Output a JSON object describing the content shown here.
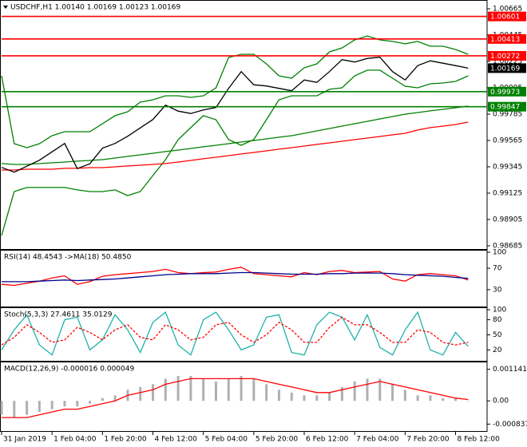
{
  "chart_data": [
    {
      "type": "line",
      "title": "USDCHF,H1 1.00140 1.00169 1.00123 1.00169",
      "x": [
        0,
        4,
        8,
        12,
        16,
        20,
        24,
        28,
        32,
        36,
        40,
        44,
        48,
        52,
        56,
        60,
        64,
        68,
        72,
        76,
        80,
        84,
        88,
        92,
        96,
        100,
        104,
        108,
        112,
        116,
        120,
        124,
        128,
        132,
        136,
        140,
        144,
        148
      ],
      "xlim": [
        0,
        154
      ],
      "xticks": [
        {
          "value": 0,
          "label": "31 Jan 2019"
        },
        {
          "value": 16,
          "label": "1 Feb 04:00"
        },
        {
          "value": 32,
          "label": "1 Feb 20:00"
        },
        {
          "value": 48,
          "label": "4 Feb 12:00"
        },
        {
          "value": 64,
          "label": "5 Feb 04:00"
        },
        {
          "value": 80,
          "label": "5 Feb 20:00"
        },
        {
          "value": 96,
          "label": "6 Feb 12:00"
        },
        {
          "value": 112,
          "label": "7 Feb 04:00"
        },
        {
          "value": 128,
          "label": "7 Feb 20:00"
        },
        {
          "value": 144,
          "label": "8 Feb 12:00"
        }
      ],
      "ylim": [
        0.98658,
        1.00725
      ],
      "yticks": [
        1.00665,
        1.00445,
        1.00225,
        1.00005,
        0.99785,
        0.99565,
        0.99345,
        0.99125,
        0.98905,
        0.98685
      ],
      "series": [
        {
          "color": "#008000",
          "values": [
            1.00105,
            0.99538,
            0.99505,
            0.99538,
            0.99605,
            0.99638,
            0.99638,
            0.99638,
            0.99705,
            0.99772,
            0.99805,
            0.99885,
            0.99905,
            0.99938,
            0.99938,
            0.99925,
            0.99938,
            1.00005,
            1.00258,
            1.00285,
            1.00285,
            1.00205,
            1.00105,
            1.00085,
            1.00172,
            1.00205,
            1.00305,
            1.00338,
            1.00405,
            1.00438,
            1.00405,
            1.00392,
            1.00372,
            1.00392,
            1.00352,
            1.00352,
            1.00325,
            1.00285
          ]
        },
        {
          "color": "#008000",
          "values": [
            0.98772,
            0.99138,
            0.99172,
            0.99172,
            0.99172,
            0.99172,
            0.99152,
            0.99138,
            0.99138,
            0.99152,
            0.99105,
            0.99138,
            0.99272,
            0.99405,
            0.99572,
            0.99672,
            0.99772,
            0.99738,
            0.99572,
            0.99525,
            0.99572,
            0.99738,
            0.99905,
            0.99938,
            0.99938,
            0.99938,
            0.99992,
            1.00005,
            1.00105,
            1.00152,
            1.00152,
            1.00085,
            1.00018,
            1.00005,
            1.00038,
            1.00045,
            1.00058,
            1.00105
          ]
        },
        {
          "color": "#008000",
          "values": [
            0.99372,
            0.99365,
            0.99365,
            0.99372,
            0.99378,
            0.99385,
            0.99392,
            0.99398,
            0.99405,
            0.99418,
            0.99432,
            0.99445,
            0.99458,
            0.99472,
            0.99485,
            0.99498,
            0.99512,
            0.99525,
            0.99538,
            0.99552,
            0.99565,
            0.99578,
            0.99592,
            0.99605,
            0.99625,
            0.99645,
            0.99665,
            0.99685,
            0.99705,
            0.99725,
            0.99745,
            0.99765,
            0.99785,
            0.99798,
            0.99812,
            0.99825,
            0.99838,
            0.99852
          ]
        },
        {
          "color": "#ff0000",
          "values": [
            0.99318,
            0.99318,
            0.99325,
            0.99325,
            0.99325,
            0.99332,
            0.99332,
            0.99338,
            0.99338,
            0.99345,
            0.99352,
            0.99358,
            0.99365,
            0.99372,
            0.99385,
            0.99398,
            0.99412,
            0.99425,
            0.99438,
            0.99452,
            0.99465,
            0.99478,
            0.99492,
            0.99505,
            0.99518,
            0.99532,
            0.99545,
            0.99558,
            0.99572,
            0.99585,
            0.99598,
            0.99612,
            0.99625,
            0.99652,
            0.99672,
            0.99685,
            0.99698,
            0.99718
          ]
        },
        {
          "color": "#000000",
          "values": [
            0.9934,
            0.993,
            0.9935,
            0.994,
            0.9947,
            0.9954,
            0.9933,
            0.9937,
            0.995,
            0.9954,
            0.996,
            0.9967,
            0.9974,
            0.9986,
            0.9981,
            0.9979,
            0.9982,
            0.9984,
            1.0,
            1.0014,
            1.0003,
            1.0002,
            1.0,
            0.9998,
            1.0007,
            1.0005,
            1.0014,
            1.0024,
            1.0022,
            1.0025,
            1.0026,
            1.0014,
            1.0007,
            1.0019,
            1.0023,
            1.0021,
            1.0019,
            1.00169
          ]
        }
      ],
      "levels": [
        {
          "value": 1.00601,
          "color": "#ff0000"
        },
        {
          "value": 1.00413,
          "color": "#ff0000"
        },
        {
          "value": 1.00272,
          "color": "#ff0000"
        },
        {
          "value": 0.99973,
          "color": "#008000"
        },
        {
          "value": 0.99847,
          "color": "#008000"
        }
      ],
      "price": 1.00169
    },
    {
      "type": "line",
      "title": "RSI(14) 48.4543  ->MA(18) 50.4850",
      "ylim": [
        0,
        100
      ],
      "yticks": [
        100,
        70,
        30
      ],
      "series": [
        {
          "color": "#ff0000",
          "values": [
            40,
            38,
            42,
            46,
            52,
            56,
            40,
            45,
            55,
            58,
            60,
            62,
            64,
            68,
            62,
            60,
            62,
            63,
            68,
            72,
            60,
            58,
            56,
            54,
            62,
            58,
            64,
            66,
            62,
            63,
            64,
            50,
            46,
            58,
            60,
            58,
            56,
            48
          ]
        },
        {
          "color": "#00008b",
          "values": [
            45,
            45,
            45,
            46,
            47,
            48,
            47,
            48,
            49,
            50,
            52,
            54,
            56,
            58,
            59,
            60,
            60,
            60,
            61,
            62,
            62,
            61,
            60,
            59,
            59,
            59,
            60,
            60,
            61,
            61,
            61,
            60,
            58,
            57,
            56,
            55,
            53,
            51
          ]
        }
      ]
    },
    {
      "type": "line",
      "title": "Stoch(5,3,3) 27.4611 35.0129",
      "ylim": [
        0,
        100
      ],
      "yticks": [
        100,
        80,
        50,
        20
      ],
      "series": [
        {
          "color": "#20b2aa",
          "values": [
            20,
            60,
            90,
            30,
            10,
            80,
            85,
            20,
            40,
            90,
            60,
            15,
            75,
            95,
            30,
            10,
            80,
            95,
            60,
            20,
            30,
            85,
            90,
            15,
            10,
            70,
            95,
            85,
            40,
            90,
            25,
            10,
            60,
            95,
            20,
            10,
            55,
            27
          ]
        },
        {
          "color": "#ff0000",
          "dashed": true,
          "values": [
            30,
            45,
            70,
            55,
            35,
            40,
            65,
            55,
            40,
            60,
            70,
            45,
            40,
            70,
            60,
            40,
            45,
            70,
            75,
            50,
            35,
            50,
            75,
            60,
            35,
            35,
            65,
            85,
            70,
            70,
            55,
            35,
            35,
            60,
            55,
            35,
            30,
            35
          ]
        }
      ]
    },
    {
      "type": "macd",
      "title": "MACD(12,26,9) -0.000016 0.000049",
      "ylim": [
        -0.00103,
        0.00133
      ],
      "yticks": [
        0.001141,
        {
          "value": 0,
          "label": "0.00"
        },
        -0.000837
      ],
      "color": "#b0b0b0",
      "values": [
        -0.0005,
        -0.0006,
        -0.0005,
        -0.0004,
        -0.0003,
        -0.0002,
        -0.0002,
        -0.0001,
        0.0001,
        0.0002,
        0.0004,
        0.0005,
        0.0006,
        0.0008,
        0.0009,
        0.0009,
        0.0008,
        0.0007,
        0.0008,
        0.0009,
        0.0008,
        0.0006,
        0.0004,
        0.0003,
        0.0002,
        0.0002,
        0.0003,
        0.0005,
        0.0007,
        0.0008,
        0.0008,
        0.0006,
        0.0004,
        0.0002,
        0.0002,
        0.0001,
        0.0001,
        0
      ],
      "series": [
        {
          "color": "#ff0000",
          "values": [
            -0.0006,
            -0.0006,
            -0.0006,
            -0.0005,
            -0.0004,
            -0.0003,
            -0.0003,
            -0.0002,
            -0.0001,
            0,
            0.0002,
            0.0003,
            0.0004,
            0.0006,
            0.0007,
            0.0008,
            0.0008,
            0.0008,
            0.0008,
            0.0008,
            0.0008,
            0.0007,
            0.0006,
            0.0005,
            0.0004,
            0.0003,
            0.0003,
            0.0004,
            0.0005,
            0.0006,
            0.0007,
            0.0006,
            0.0005,
            0.0004,
            0.0003,
            0.0002,
            0.0001,
            5e-05
          ]
        }
      ]
    }
  ]
}
